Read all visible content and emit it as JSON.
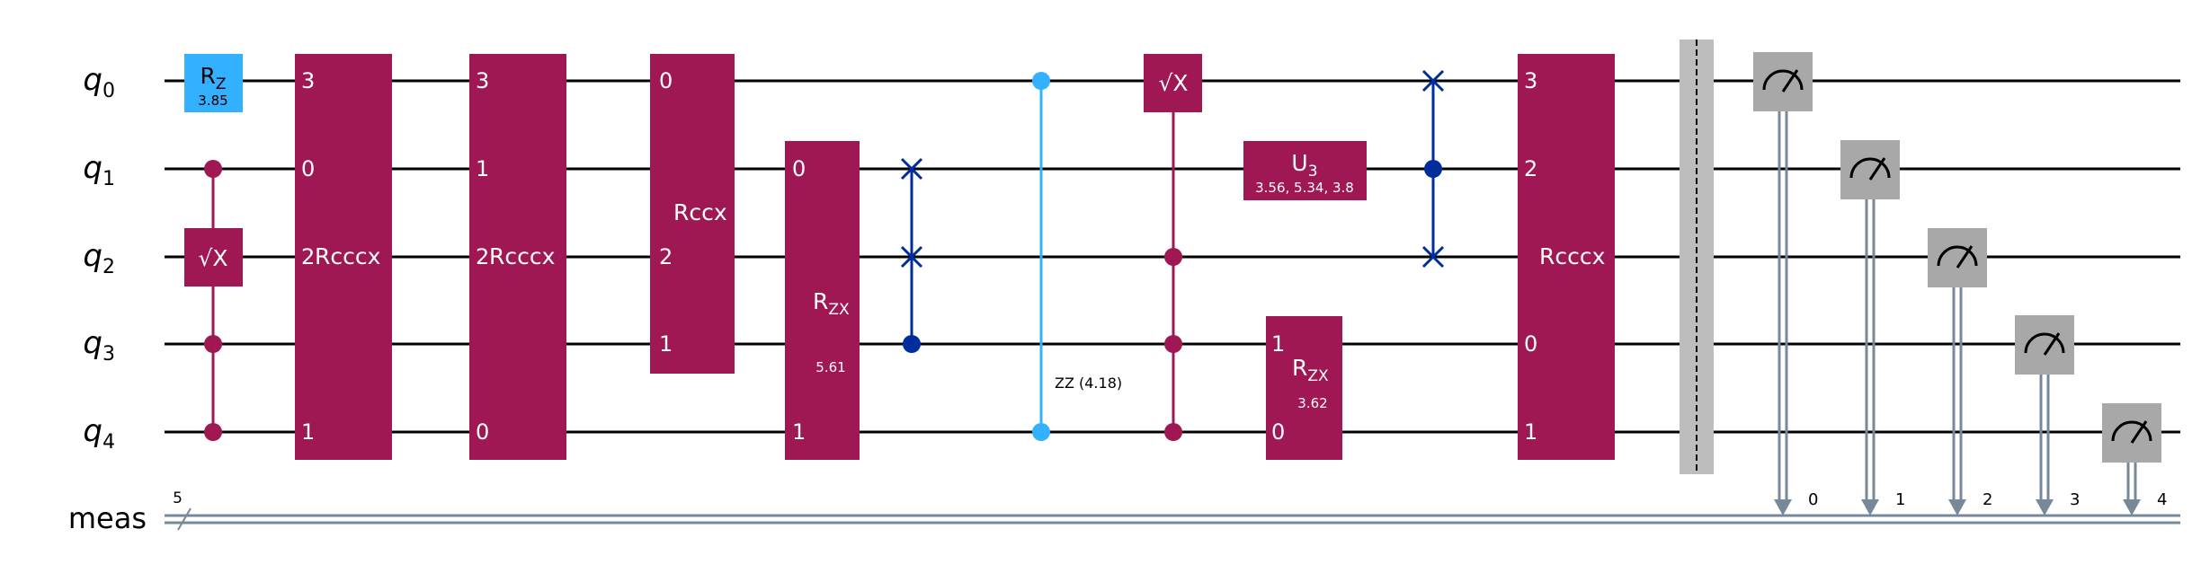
{
  "registers": {
    "qubits": [
      {
        "base": "q",
        "index": "0"
      },
      {
        "base": "q",
        "index": "1"
      },
      {
        "base": "q",
        "index": "2"
      },
      {
        "base": "q",
        "index": "3"
      },
      {
        "base": "q",
        "index": "4"
      }
    ],
    "classical": {
      "name": "meas",
      "size": "5"
    }
  },
  "colors": {
    "rz": "#33b1ff",
    "two_qubit": "#9f1853",
    "swap": "#002d9c",
    "zz": "#33b1ff",
    "measure": "#a8a8a8",
    "barrier": "#bdbdbd",
    "classical_wire": "#778899"
  },
  "gates": {
    "rz": {
      "base": "R",
      "sub": "Z",
      "param": "3.85"
    },
    "sx1": {
      "label": "√X"
    },
    "rcccx1": {
      "label": "Rcccx",
      "pins": [
        "3",
        "0",
        "2",
        "1"
      ]
    },
    "rcccx2": {
      "label": "Rcccx",
      "pins": [
        "3",
        "1",
        "2",
        "0"
      ]
    },
    "rccx": {
      "label": "Rccx",
      "pins": [
        "0",
        "2",
        "1"
      ]
    },
    "rzx1": {
      "base": "R",
      "sub": "ZX",
      "param": "5.61",
      "pins": [
        "0",
        "1"
      ]
    },
    "zz": {
      "label": "ZZ (4.18)"
    },
    "sx2": {
      "label": "√X"
    },
    "u3": {
      "base": "U",
      "sub": "3",
      "params": "3.56, 5.34, 3.8"
    },
    "rzx2": {
      "base": "R",
      "sub": "ZX",
      "param": "3.62",
      "pins": [
        "1",
        "0"
      ]
    },
    "rcccx3": {
      "label": "Rcccx",
      "pins": [
        "3",
        "2",
        "0",
        "1"
      ]
    }
  },
  "measurements": [
    "0",
    "1",
    "2",
    "3",
    "4"
  ]
}
